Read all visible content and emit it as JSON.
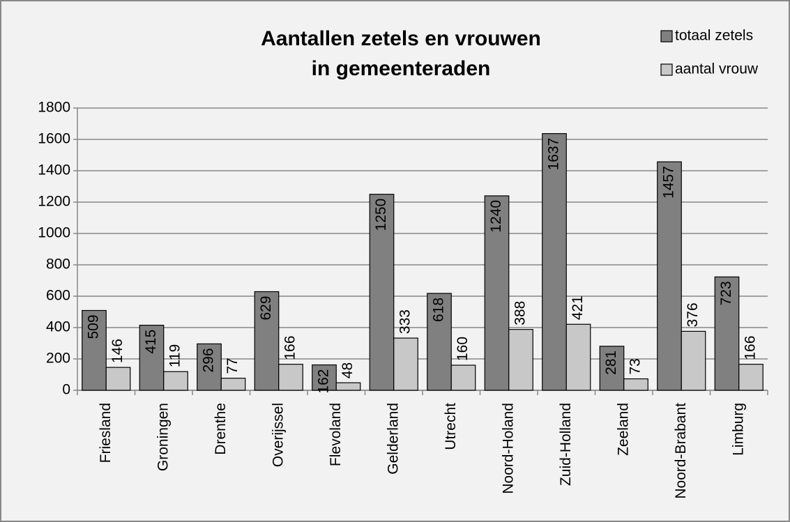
{
  "chart_data": {
    "type": "bar",
    "title": [
      "Aantallen zetels en vrouwen",
      "in gemeenteraden"
    ],
    "categories": [
      "Friesland",
      "Groningen",
      "Drenthe",
      "Overijssel",
      "Flevoland",
      "Gelderland",
      "Utrecht",
      "Noord-Holand",
      "Zuid-Holland",
      "Zeeland",
      "Noord-Brabant",
      "Limburg"
    ],
    "series": [
      {
        "name": "totaal zetels",
        "color": "#808080",
        "values": [
          509,
          415,
          296,
          629,
          162,
          1250,
          618,
          1240,
          1637,
          281,
          1457,
          723
        ]
      },
      {
        "name": "aantal vrouw",
        "color": "#c8c8c8",
        "values": [
          146,
          119,
          77,
          166,
          48,
          333,
          160,
          388,
          421,
          73,
          376,
          166
        ]
      }
    ],
    "ylim": [
      0,
      1800
    ],
    "yticks": [
      0,
      200,
      400,
      600,
      800,
      1000,
      1200,
      1400,
      1600,
      1800
    ],
    "grid": true,
    "legend": "top-right"
  }
}
